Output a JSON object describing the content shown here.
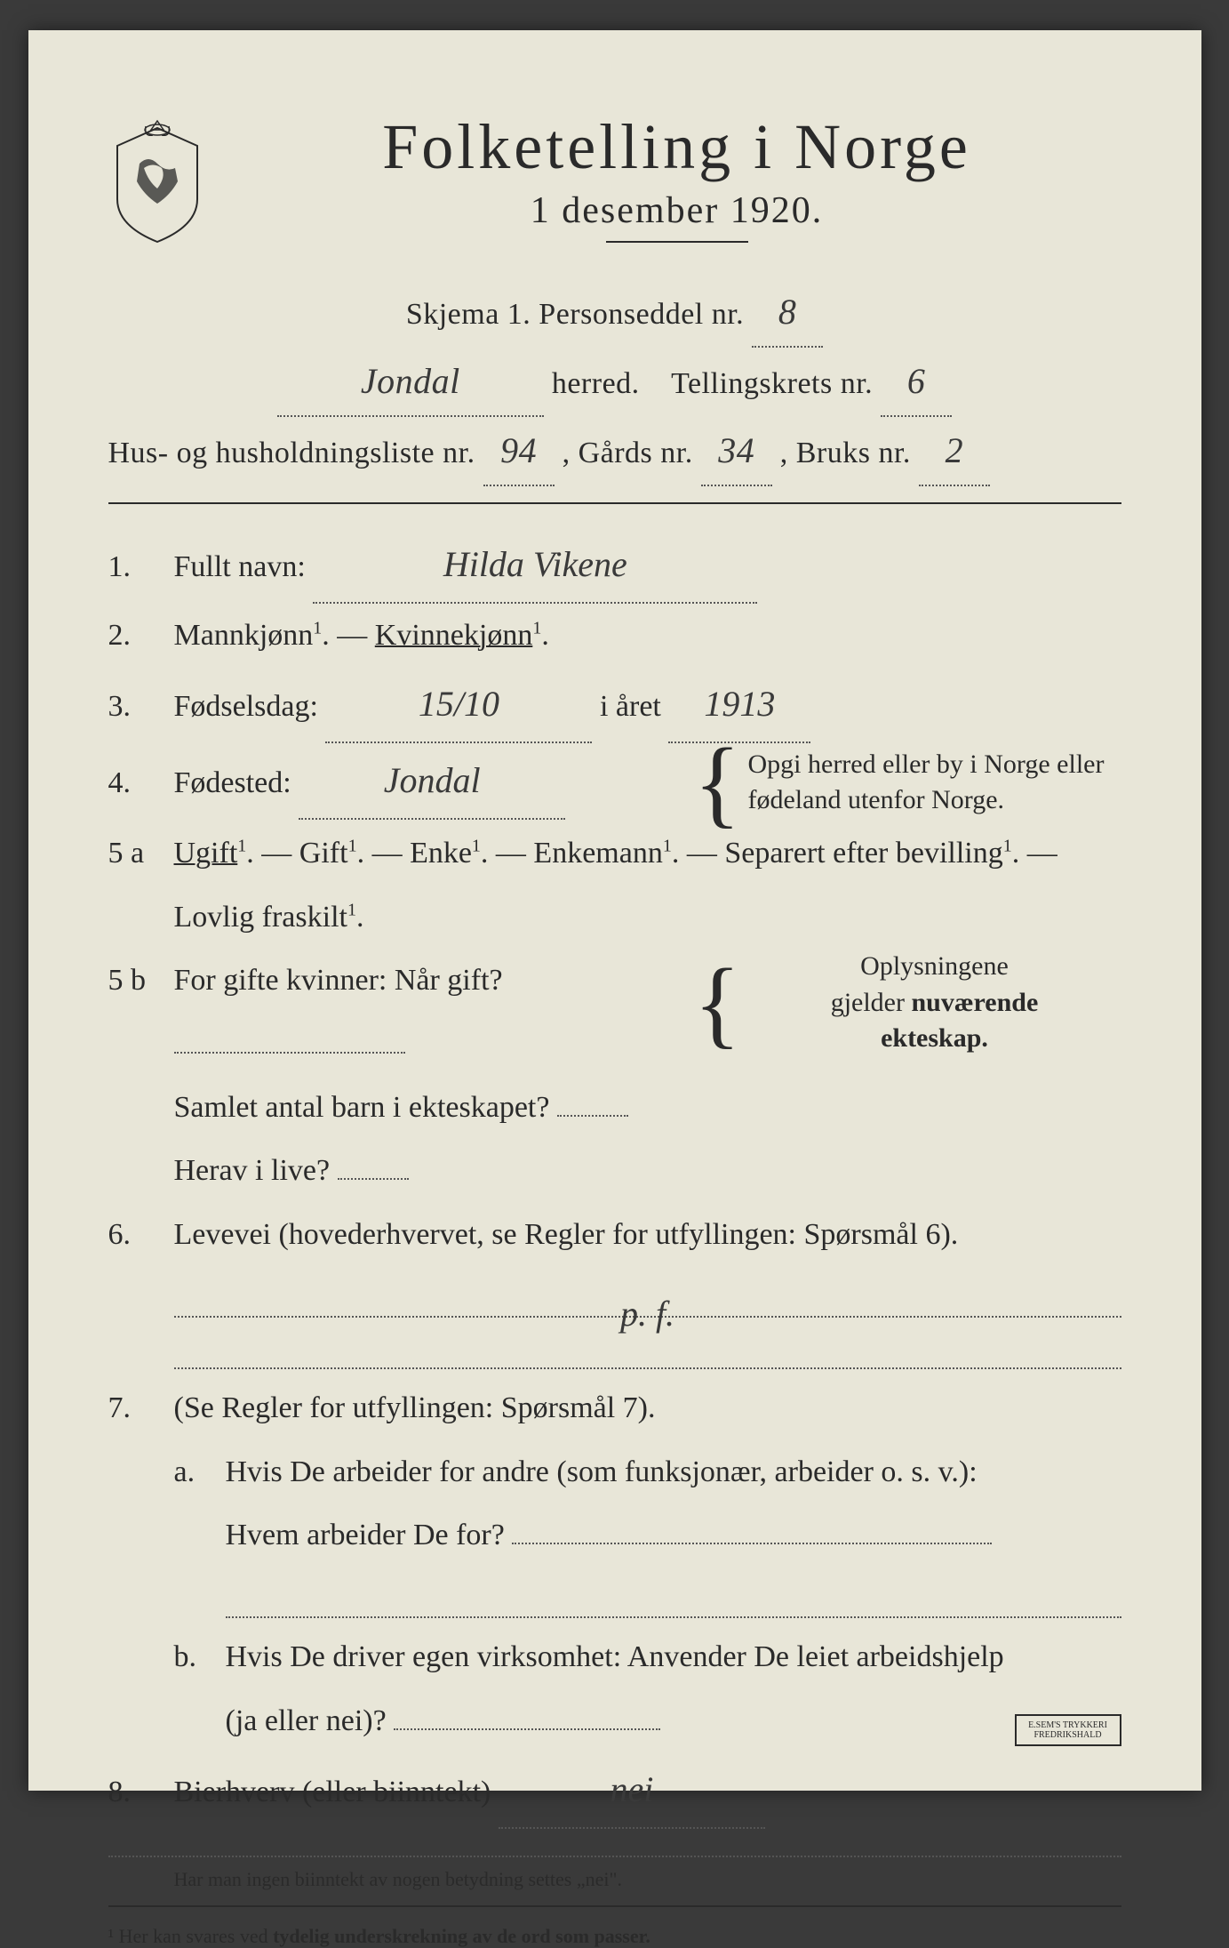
{
  "colors": {
    "paper": "#e8e6d8",
    "ink": "#2a2a2a",
    "dotted": "#555555",
    "background": "#3a3a3a",
    "handwriting": "#3a3a3a"
  },
  "typography": {
    "title_fontsize": 72,
    "subtitle_fontsize": 42,
    "body_fontsize": 34,
    "sidenote_fontsize": 28,
    "footnote_fontsize": 22,
    "handwritten_fontsize": 40,
    "font_family_print": "Georgia, Times New Roman, serif",
    "font_family_hand": "Brush Script MT, cursive"
  },
  "header": {
    "title": "Folketelling i Norge",
    "subtitle": "1 desember 1920.",
    "schema_label": "Skjema 1.   Personseddel nr.",
    "personseddel_nr": "8",
    "herred_label": "herred.",
    "herred_value": "Jondal",
    "tellingskrets_label": "Tellingskrets nr.",
    "tellingskrets_nr": "6",
    "husliste_label": "Hus- og husholdningsliste nr.",
    "husliste_nr": "94",
    "gards_label": ", Gårds nr.",
    "gards_nr": "34",
    "bruks_label": ", Bruks nr.",
    "bruks_nr": "2"
  },
  "q1": {
    "num": "1.",
    "label": "Fullt navn:",
    "value": "Hilda Vikene"
  },
  "q2": {
    "num": "2.",
    "text_a": "Mannkjønn",
    "text_b": "Kvinnekjønn",
    "dash": " — ",
    "selected": "Kvinnekjønn"
  },
  "q3": {
    "num": "3.",
    "label_a": "Fødselsdag:",
    "value_day": "15/10",
    "label_b": "i året",
    "value_year": "1913"
  },
  "q4": {
    "num": "4.",
    "label": "Fødested:",
    "value": "Jondal",
    "side_note": "Opgi herred eller by i Norge eller fødeland utenfor Norge."
  },
  "q5a": {
    "num": "5 a",
    "options": [
      "Ugift",
      "Gift",
      "Enke",
      "Enkemann",
      "Separert efter bevilling",
      "Lovlig fraskilt"
    ],
    "selected": "Ugift",
    "sep": " — "
  },
  "q5b": {
    "num": "5 b",
    "label_a": "For gifte kvinner: Når gift?",
    "value_a": "",
    "label_b": "Samlet antal barn i ekteskapet?",
    "value_b": "",
    "label_c": "Herav i live?",
    "value_c": "",
    "side_note_a": "Oplysningene",
    "side_note_b": "gjelder nuværende",
    "side_note_c": "ekteskap."
  },
  "q6": {
    "num": "6.",
    "label": "Levevei (hovederhvervet, se Regler for utfyllingen:  Spørsmål 6).",
    "value": "p. f."
  },
  "q7": {
    "num": "7.",
    "label": "(Se Regler for utfyllingen:   Spørsmål 7).",
    "a_num": "a.",
    "a_text1": "Hvis De arbeider for andre (som funksjonær, arbeider o. s. v.):",
    "a_text2": "Hvem arbeider De for?",
    "a_value": "",
    "b_num": "b.",
    "b_text1": "Hvis De driver egen virksomhet:  Anvender De leiet arbeidshjelp",
    "b_text2": "(ja eller nei)?",
    "b_value": ""
  },
  "q8": {
    "num": "8.",
    "label": "Bierhverv (eller biinntekt)",
    "value": "nei"
  },
  "footer": {
    "note1": "Har man ingen biinntekt av nogen betydning settes „nei\".",
    "note2_prefix": "¹  Her kan svares ved ",
    "note2_bold": "tydelig underskrekning av de ord som passer.",
    "printer": "E.SEM'S TRYKKERI FREDRIKSHALD"
  }
}
